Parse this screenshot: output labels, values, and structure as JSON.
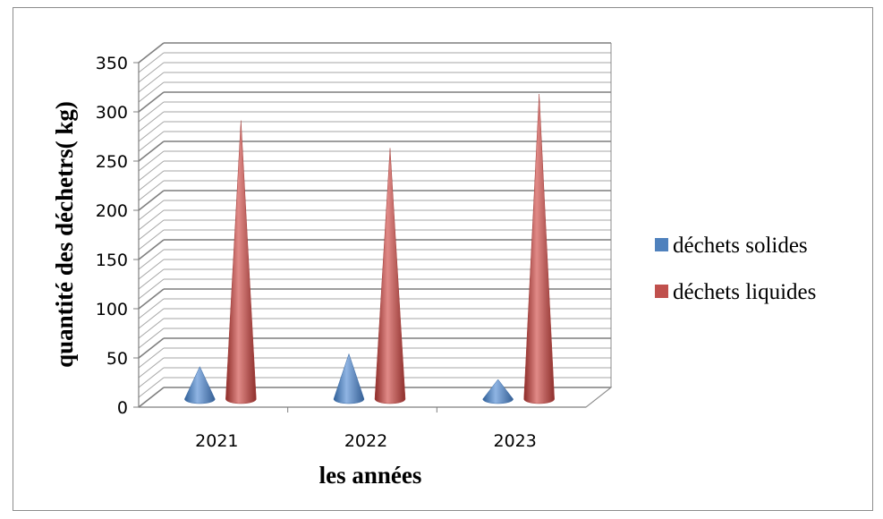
{
  "chart_data": {
    "type": "bar",
    "style": "3d-cone",
    "categories": [
      "2021",
      "2022",
      "2023"
    ],
    "series": [
      {
        "name": "déchets solides",
        "values": [
          33,
          46,
          20
        ],
        "color": "#4f81bd"
      },
      {
        "name": "déchets liquides",
        "values": [
          283,
          255,
          310
        ],
        "color": "#c0504d"
      }
    ],
    "xlabel": "les années",
    "ylabel": "quantité des déchetrs( kg)",
    "ylim": [
      0,
      350
    ],
    "yticks": [
      0,
      50,
      100,
      150,
      200,
      250,
      300,
      350
    ],
    "grid": true,
    "legend_position": "right"
  }
}
